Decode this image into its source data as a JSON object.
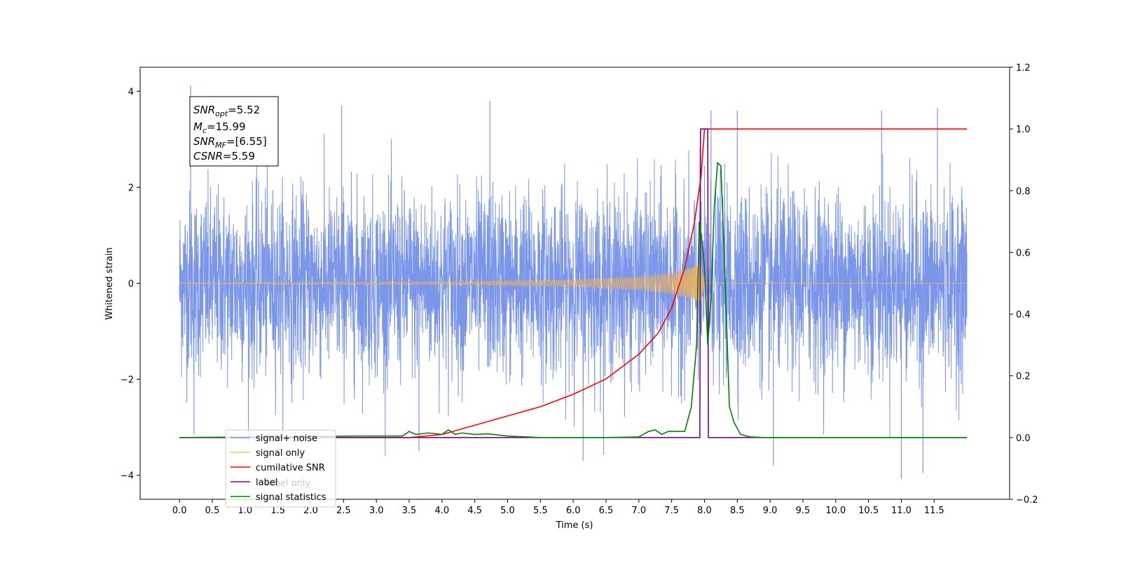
{
  "chart_data": {
    "type": "line",
    "xlabel": "Time (s)",
    "ylabel": "Whitened strain",
    "xlim": [
      -0.6,
      12.65
    ],
    "ylim_left": [
      -4.5,
      4.5
    ],
    "ylim_right": [
      -0.2,
      1.2
    ],
    "x_ticks": [
      "0.0",
      "0.5",
      "1.0",
      "1.5",
      "2.0",
      "2.5",
      "3.0",
      "3.5",
      "4.0",
      "4.5",
      "5.0",
      "5.5",
      "6.0",
      "6.5",
      "7.0",
      "7.5",
      "8.0",
      "8.5",
      "9.0",
      "9.5",
      "10.0",
      "10.5",
      "11.0",
      "11.5"
    ],
    "y_ticks_left": [
      "4",
      "2",
      "0",
      "−2",
      "−4"
    ],
    "y_ticks_right": [
      "1.2",
      "1.0",
      "0.8",
      "0.6",
      "0.4",
      "0.2",
      "0.0",
      "−0.2"
    ],
    "grid": false,
    "legend_position": "lower-left",
    "annotation": {
      "snr_opt_label": "SNR",
      "snr_opt_sub": "opt",
      "snr_opt_value": "=5.52",
      "mc_label": "M",
      "mc_sub": "c",
      "mc_value": "=15.99",
      "snr_mf_label": "SNR",
      "snr_mf_sub": "MF",
      "snr_mf_value": "=[6.55]",
      "csnr_label": "CSNR",
      "csnr_value": "=5.59"
    },
    "series": [
      {
        "name": "signal+ noise",
        "color": "#7b96e8",
        "axis": "left",
        "description_kind": "noise",
        "x_range": [
          0.0,
          12.0
        ],
        "std": 0.95,
        "y_extremes": [
          4.12,
          -4.08
        ]
      },
      {
        "name": "signal only",
        "color": "#f0b35a",
        "axis": "left",
        "description_kind": "chirp",
        "x_range": [
          0.0,
          8.0
        ],
        "amplitude_envelope": [
          [
            0.0,
            0.01
          ],
          [
            4.0,
            0.03
          ],
          [
            6.0,
            0.07
          ],
          [
            7.0,
            0.13
          ],
          [
            7.5,
            0.22
          ],
          [
            7.8,
            0.32
          ],
          [
            7.95,
            0.42
          ],
          [
            8.0,
            0.0
          ]
        ]
      },
      {
        "name": "cumilative SNR",
        "color": "#ff0000",
        "axis": "right",
        "x": [
          0.0,
          3.5,
          4.0,
          4.5,
          5.0,
          5.5,
          6.0,
          6.5,
          7.0,
          7.3,
          7.5,
          7.7,
          7.85,
          7.95,
          8.0,
          12.0
        ],
        "y": [
          0.0,
          0.0,
          0.01,
          0.04,
          0.07,
          0.1,
          0.14,
          0.19,
          0.27,
          0.34,
          0.42,
          0.55,
          0.7,
          0.85,
          1.0,
          1.0
        ]
      },
      {
        "name": "label",
        "color": "#800080",
        "axis": "right",
        "x": [
          0.0,
          7.93,
          7.94,
          8.05,
          8.06,
          12.0
        ],
        "y": [
          0.0,
          0.0,
          1.0,
          1.0,
          0.0,
          0.0
        ]
      },
      {
        "name": "signal statistics",
        "color": "#008000",
        "axis": "right",
        "x": [
          0.0,
          2.8,
          3.4,
          3.5,
          3.6,
          3.8,
          4.0,
          4.1,
          4.2,
          4.3,
          4.5,
          4.7,
          5.0,
          5.5,
          6.0,
          6.5,
          7.0,
          7.15,
          7.25,
          7.35,
          7.45,
          7.55,
          7.7,
          7.8,
          7.88,
          7.92,
          7.97,
          8.0,
          8.05,
          8.1,
          8.15,
          8.2,
          8.25,
          8.3,
          8.38,
          8.45,
          8.55,
          8.7,
          8.9,
          12.0
        ],
        "y": [
          0.0,
          0.005,
          0.005,
          0.02,
          0.01,
          0.015,
          0.01,
          0.025,
          0.01,
          0.015,
          0.01,
          0.012,
          0.005,
          0.0,
          0.0,
          0.0,
          0.002,
          0.02,
          0.025,
          0.01,
          0.02,
          0.02,
          0.02,
          0.1,
          0.3,
          0.7,
          0.62,
          0.55,
          0.3,
          0.45,
          0.75,
          0.89,
          0.88,
          0.6,
          0.1,
          0.05,
          0.01,
          0.002,
          0.0,
          0.0
        ]
      }
    ],
    "legend": [
      {
        "label": "signal+ noise",
        "color": "#7b96e8"
      },
      {
        "label": "signal only",
        "color": "#f5c26b"
      },
      {
        "label": "cumilative SNR",
        "color": "#ff0000"
      },
      {
        "label": "label",
        "color": "#800080"
      },
      {
        "label": "signal statistics",
        "color": "#008000"
      }
    ],
    "legend_ghost_text": [
      "label only"
    ]
  }
}
